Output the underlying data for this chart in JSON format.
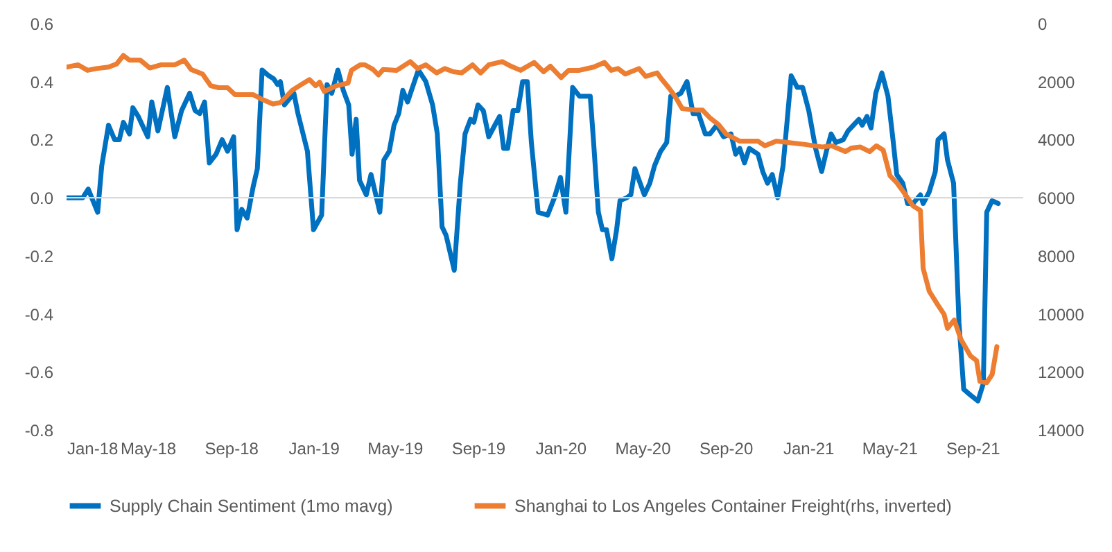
{
  "chart_data": {
    "type": "line",
    "xlim": [
      "2018-01-01",
      "2021-11-15"
    ],
    "xticks": [
      {
        "value": "2018-01-01",
        "label": "Jan-18"
      },
      {
        "value": "2018-05-01",
        "label": "May-18"
      },
      {
        "value": "2018-09-01",
        "label": "Sep-18"
      },
      {
        "value": "2019-01-01",
        "label": "Jan-19"
      },
      {
        "value": "2019-05-01",
        "label": "May-19"
      },
      {
        "value": "2019-09-01",
        "label": "Sep-19"
      },
      {
        "value": "2020-01-01",
        "label": "Jan-20"
      },
      {
        "value": "2020-05-01",
        "label": "May-20"
      },
      {
        "value": "2020-09-01",
        "label": "Sep-20"
      },
      {
        "value": "2021-01-01",
        "label": "Jan-21"
      },
      {
        "value": "2021-05-01",
        "label": "May-21"
      },
      {
        "value": "2021-09-01",
        "label": "Sep-21"
      }
    ],
    "ylim": [
      -0.8,
      0.6
    ],
    "yticks": [
      {
        "value": -0.8,
        "label": "-0.8"
      },
      {
        "value": -0.6,
        "label": "-0.6"
      },
      {
        "value": -0.4,
        "label": "-0.4"
      },
      {
        "value": -0.2,
        "label": "-0.2"
      },
      {
        "value": 0,
        "label": "0.0"
      },
      {
        "value": 0.2,
        "label": "0.2"
      },
      {
        "value": 0.4,
        "label": "0.4"
      },
      {
        "value": 0.6,
        "label": "0.6"
      }
    ],
    "y2lim": [
      14000,
      0
    ],
    "y2ticks": [
      0,
      2000,
      4000,
      6000,
      8000,
      10000,
      12000,
      14000
    ],
    "grid": false,
    "legend": "bottom",
    "line_style": "solid",
    "ref_lines": [
      {
        "axis": "y",
        "value": 0,
        "color": "#d9d9d9"
      }
    ],
    "series": [
      {
        "name": "Supply Chain Sentiment (1mo mavg)",
        "color": "#0070c0",
        "x": [
          "2018-01-01",
          "2018-01-25",
          "2018-02-02",
          "2018-02-16",
          "2018-02-22",
          "2018-03-04",
          "2018-03-13",
          "2018-03-20",
          "2018-03-26",
          "2018-04-04",
          "2018-04-09",
          "2018-04-17",
          "2018-05-01",
          "2018-05-07",
          "2018-05-16",
          "2018-05-30",
          "2018-06-10",
          "2018-06-20",
          "2018-07-02",
          "2018-07-10",
          "2018-07-17",
          "2018-07-24",
          "2018-07-31",
          "2018-08-10",
          "2018-08-19",
          "2018-08-27",
          "2018-09-05",
          "2018-09-10",
          "2018-09-17",
          "2018-09-25",
          "2018-10-04",
          "2018-10-10",
          "2018-10-17",
          "2018-10-27",
          "2018-11-03",
          "2018-11-09",
          "2018-11-13",
          "2018-11-19",
          "2018-12-03",
          "2018-12-09",
          "2018-12-23",
          "2019-01-01",
          "2019-01-13",
          "2019-01-21",
          "2019-01-28",
          "2019-02-06",
          "2019-02-14",
          "2019-02-22",
          "2019-02-27",
          "2019-03-05",
          "2019-03-10",
          "2019-03-20",
          "2019-03-27",
          "2019-04-09",
          "2019-04-15",
          "2019-04-23",
          "2019-04-30",
          "2019-05-07",
          "2019-05-13",
          "2019-05-20",
          "2019-06-05",
          "2019-06-16",
          "2019-06-26",
          "2019-07-03",
          "2019-07-10",
          "2019-07-16",
          "2019-07-28",
          "2019-08-06",
          "2019-08-13",
          "2019-08-21",
          "2019-08-26",
          "2019-09-01",
          "2019-09-09",
          "2019-09-17",
          "2019-09-26",
          "2019-10-03",
          "2019-10-09",
          "2019-10-15",
          "2019-10-23",
          "2019-10-30",
          "2019-11-06",
          "2019-11-13",
          "2019-11-19",
          "2019-11-29",
          "2019-12-13",
          "2019-12-23",
          "2020-01-01",
          "2020-01-09",
          "2020-01-19",
          "2020-01-29",
          "2020-02-06",
          "2020-02-14",
          "2020-02-19",
          "2020-02-26",
          "2020-03-03",
          "2020-03-09",
          "2020-03-17",
          "2020-03-24",
          "2020-03-29",
          "2020-04-08",
          "2020-04-14",
          "2020-04-20",
          "2020-05-04",
          "2020-05-12",
          "2020-05-19",
          "2020-05-28",
          "2020-06-06",
          "2020-06-12",
          "2020-06-19",
          "2020-06-27",
          "2020-07-06",
          "2020-07-15",
          "2020-07-23",
          "2020-08-02",
          "2020-08-09",
          "2020-08-19",
          "2020-08-29",
          "2020-09-09",
          "2020-09-16",
          "2020-09-22",
          "2020-09-29",
          "2020-10-06",
          "2020-10-19",
          "2020-10-26",
          "2020-11-02",
          "2020-11-09",
          "2020-11-17",
          "2020-11-25",
          "2020-12-07",
          "2020-12-16",
          "2020-12-24",
          "2021-01-02",
          "2021-01-12",
          "2021-01-21",
          "2021-01-28",
          "2021-02-04",
          "2021-02-11",
          "2021-02-22",
          "2021-03-01",
          "2021-03-09",
          "2021-03-17",
          "2021-03-22",
          "2021-03-29",
          "2021-04-04",
          "2021-04-11",
          "2021-04-20",
          "2021-04-29",
          "2021-05-06",
          "2021-05-12",
          "2021-05-21",
          "2021-05-28",
          "2021-06-05",
          "2021-06-16",
          "2021-06-20",
          "2021-06-29",
          "2021-07-08",
          "2021-07-12",
          "2021-07-21",
          "2021-07-26",
          "2021-08-04",
          "2021-08-12",
          "2021-08-19",
          "2021-08-29",
          "2021-09-09",
          "2021-09-17",
          "2021-09-22",
          "2021-09-30",
          "2021-10-09"
        ],
        "values": [
          0.0,
          0.0,
          0.03,
          -0.05,
          0.11,
          0.25,
          0.2,
          0.2,
          0.26,
          0.22,
          0.31,
          0.28,
          0.21,
          0.33,
          0.23,
          0.38,
          0.21,
          0.3,
          0.36,
          0.3,
          0.29,
          0.33,
          0.12,
          0.15,
          0.2,
          0.16,
          0.21,
          -0.11,
          -0.04,
          -0.07,
          0.04,
          0.1,
          0.44,
          0.42,
          0.41,
          0.39,
          0.4,
          0.32,
          0.36,
          0.29,
          0.16,
          -0.11,
          -0.06,
          0.39,
          0.36,
          0.44,
          0.37,
          0.32,
          0.15,
          0.27,
          0.06,
          0.01,
          0.08,
          -0.05,
          0.13,
          0.16,
          0.25,
          0.29,
          0.37,
          0.33,
          0.44,
          0.4,
          0.32,
          0.22,
          -0.1,
          -0.13,
          -0.25,
          0.05,
          0.22,
          0.27,
          0.26,
          0.32,
          0.3,
          0.21,
          0.25,
          0.28,
          0.17,
          0.17,
          0.3,
          0.3,
          0.4,
          0.4,
          0.19,
          -0.05,
          -0.06,
          0.0,
          0.07,
          -0.05,
          0.38,
          0.35,
          0.35,
          0.35,
          0.19,
          -0.05,
          -0.11,
          -0.11,
          -0.21,
          -0.11,
          -0.01,
          0.0,
          0.01,
          0.1,
          0.01,
          0.05,
          0.11,
          0.16,
          0.19,
          0.35,
          0.35,
          0.36,
          0.4,
          0.29,
          0.29,
          0.22,
          0.22,
          0.25,
          0.21,
          0.22,
          0.15,
          0.17,
          0.12,
          0.17,
          0.15,
          0.09,
          0.05,
          0.08,
          0.0,
          0.11,
          0.42,
          0.38,
          0.38,
          0.3,
          0.17,
          0.09,
          0.16,
          0.22,
          0.19,
          0.2,
          0.23,
          0.25,
          0.27,
          0.25,
          0.28,
          0.24,
          0.36,
          0.43,
          0.35,
          0.21,
          0.08,
          0.05,
          -0.02,
          -0.02,
          0.01,
          -0.02,
          0.02,
          0.09,
          0.2,
          0.22,
          0.13,
          0.05,
          -0.43,
          -0.66,
          -0.68,
          -0.7,
          -0.64,
          -0.05,
          -0.01,
          -0.02
        ]
      },
      {
        "name": "Shanghai to Los Angeles Container Freight(rhs, inverted)",
        "color": "#ed7d31",
        "axis": "y2",
        "x": [
          "2018-01-01",
          "2018-01-18",
          "2018-02-01",
          "2018-02-14",
          "2018-03-04",
          "2018-03-16",
          "2018-03-26",
          "2018-04-04",
          "2018-04-20",
          "2018-05-04",
          "2018-05-21",
          "2018-06-10",
          "2018-06-24",
          "2018-07-04",
          "2018-07-21",
          "2018-08-02",
          "2018-08-14",
          "2018-08-27",
          "2018-09-07",
          "2018-10-04",
          "2018-10-17",
          "2018-11-02",
          "2018-11-13",
          "2018-12-01",
          "2018-12-14",
          "2018-12-26",
          "2019-01-04",
          "2019-01-10",
          "2019-01-17",
          "2019-02-04",
          "2019-02-21",
          "2019-02-26",
          "2019-03-11",
          "2019-03-18",
          "2019-03-30",
          "2019-04-07",
          "2019-04-14",
          "2019-05-04",
          "2019-05-24",
          "2019-06-04",
          "2019-06-16",
          "2019-07-02",
          "2019-07-14",
          "2019-07-27",
          "2019-08-08",
          "2019-08-24",
          "2019-09-05",
          "2019-09-17",
          "2019-10-07",
          "2019-10-20",
          "2019-11-03",
          "2019-11-23",
          "2019-12-07",
          "2019-12-17",
          "2020-01-02",
          "2020-01-13",
          "2020-01-29",
          "2020-02-19",
          "2020-03-06",
          "2020-03-16",
          "2020-03-26",
          "2020-04-06",
          "2020-04-26",
          "2020-05-06",
          "2020-05-23",
          "2020-05-29",
          "2020-06-09",
          "2020-06-19",
          "2020-06-29",
          "2020-07-19",
          "2020-07-29",
          "2020-08-09",
          "2020-08-22",
          "2020-09-02",
          "2020-09-22",
          "2020-10-19",
          "2020-10-29",
          "2020-11-15",
          "2020-12-26",
          "2021-01-22",
          "2021-02-05",
          "2021-02-25",
          "2021-03-06",
          "2021-03-19",
          "2021-04-02",
          "2021-04-12",
          "2021-04-22",
          "2021-05-02",
          "2021-05-12",
          "2021-05-22",
          "2021-06-05",
          "2021-06-16",
          "2021-06-20",
          "2021-06-29",
          "2021-07-12",
          "2021-07-21",
          "2021-07-26",
          "2021-08-05",
          "2021-08-15",
          "2021-08-29",
          "2021-09-07",
          "2021-09-12",
          "2021-09-22",
          "2021-09-30",
          "2021-10-07"
        ],
        "values": [
          1500,
          1420,
          1610,
          1550,
          1500,
          1390,
          1100,
          1260,
          1260,
          1530,
          1420,
          1420,
          1260,
          1580,
          1740,
          2140,
          2210,
          2210,
          2450,
          2450,
          2610,
          2770,
          2720,
          2290,
          2100,
          1930,
          2140,
          2020,
          2340,
          2140,
          2050,
          1610,
          1420,
          1420,
          1580,
          1770,
          1580,
          1610,
          1310,
          1550,
          1420,
          1700,
          1550,
          1660,
          1700,
          1420,
          1700,
          1420,
          1310,
          1470,
          1610,
          1340,
          1660,
          1470,
          1860,
          1610,
          1610,
          1500,
          1340,
          1610,
          1550,
          1740,
          1550,
          1820,
          1700,
          1900,
          2210,
          2530,
          2930,
          2980,
          2980,
          3250,
          3490,
          3810,
          4050,
          4050,
          4210,
          4050,
          4160,
          4250,
          4210,
          4410,
          4290,
          4250,
          4410,
          4210,
          4360,
          5240,
          5480,
          5800,
          6280,
          6440,
          8430,
          9220,
          9700,
          10020,
          10500,
          10210,
          10890,
          11450,
          11610,
          12330,
          12370,
          12090,
          11130
        ]
      }
    ]
  }
}
